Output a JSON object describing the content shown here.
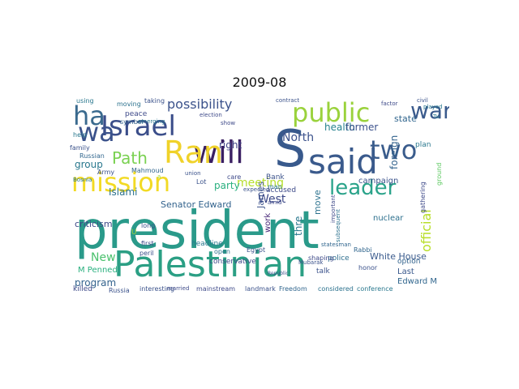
{
  "title": "2009-08",
  "words": [
    {
      "text": "president",
      "color": "#2a9a8a"
    },
    {
      "text": "Palestinian",
      "color": "#2b9f84"
    },
    {
      "text": "said",
      "color": "#3a5a8c"
    },
    {
      "text": "S",
      "color": "#38598c"
    },
    {
      "text": "will",
      "color": "#3a1f62"
    },
    {
      "text": "Ran",
      "color": "#f0d22a"
    },
    {
      "text": "mission",
      "color": "#f2da24"
    },
    {
      "text": "Israel",
      "color": "#3b4e8a"
    },
    {
      "text": "public",
      "color": "#9ad23c"
    },
    {
      "text": "two",
      "color": "#3a5c8c"
    },
    {
      "text": "war",
      "color": "#3a5a8c"
    },
    {
      "text": "ha",
      "color": "#3a6a8e"
    },
    {
      "text": "wa",
      "color": "#3b528b"
    },
    {
      "text": "leader",
      "color": "#2aa38a"
    },
    {
      "text": "Path",
      "color": "#7ad151"
    },
    {
      "text": "possibility",
      "color": "#3b528b"
    },
    {
      "text": "official",
      "color": "#b8de29"
    },
    {
      "text": "meeting",
      "color": "#b5de2b"
    },
    {
      "text": "West",
      "color": "#3e4a89"
    },
    {
      "text": "North",
      "color": "#3b518b"
    },
    {
      "text": "right",
      "color": "#404387"
    },
    {
      "text": "health",
      "color": "#26828e"
    },
    {
      "text": "former",
      "color": "#3b518b"
    },
    {
      "text": "state",
      "color": "#31668e"
    },
    {
      "text": "foreign",
      "color": "#33638d"
    },
    {
      "text": "group",
      "color": "#2a788e"
    },
    {
      "text": "party",
      "color": "#2ab07f"
    },
    {
      "text": "New",
      "color": "#4ac16d"
    },
    {
      "text": "program",
      "color": "#33638d"
    },
    {
      "text": "Senator Edward",
      "color": "#33638d"
    },
    {
      "text": "Islami",
      "color": "#2c728e"
    },
    {
      "text": "criticism",
      "color": "#3e4a89"
    },
    {
      "text": "James",
      "color": "#3b518b"
    },
    {
      "text": "White House",
      "color": "#3a5a8c"
    },
    {
      "text": "Last",
      "color": "#38588c"
    },
    {
      "text": "Edward M",
      "color": "#31668e"
    },
    {
      "text": "campaign",
      "color": "#3b528b"
    },
    {
      "text": "move",
      "color": "#2c728e"
    },
    {
      "text": "nuclear",
      "color": "#2d708e"
    },
    {
      "text": "police",
      "color": "#2e6e8e"
    },
    {
      "text": "M Penned",
      "color": "#2ab07f"
    },
    {
      "text": "killed",
      "color": "#3e4a89"
    },
    {
      "text": "Russia",
      "color": "#3b528b"
    },
    {
      "text": "mainstream",
      "color": "#3e4a89"
    },
    {
      "text": "landmark",
      "color": "#3b528b"
    },
    {
      "text": "Freedom",
      "color": "#31668e"
    },
    {
      "text": "considered",
      "color": "#2c728e"
    },
    {
      "text": "conference",
      "color": "#2a788e"
    },
    {
      "text": "interesting",
      "color": "#3b528b"
    },
    {
      "text": "conservative",
      "color": "#3e4a89"
    },
    {
      "text": "headline",
      "color": "#2a788e"
    },
    {
      "text": "work",
      "color": "#482878"
    },
    {
      "text": "thre",
      "color": "#2a788e"
    },
    {
      "text": "talk",
      "color": "#3b528b"
    },
    {
      "text": "option",
      "color": "#33638d"
    },
    {
      "text": "plan",
      "color": "#2a788e"
    },
    {
      "text": "family",
      "color": "#3b528b"
    },
    {
      "text": "Russian",
      "color": "#31668e"
    },
    {
      "text": "Army",
      "color": "#3b528b"
    },
    {
      "text": "Mahmoud",
      "color": "#31668e"
    },
    {
      "text": "help",
      "color": "#2a788e"
    },
    {
      "text": "peace",
      "color": "#3e4a89"
    },
    {
      "text": "symbol",
      "color": "#33638d"
    },
    {
      "text": "moving",
      "color": "#2c728e"
    },
    {
      "text": "taking",
      "color": "#3b528b"
    },
    {
      "text": "using",
      "color": "#2a788e"
    },
    {
      "text": "accused",
      "color": "#3e4a89"
    },
    {
      "text": "Bank",
      "color": "#3b528b"
    },
    {
      "text": "man",
      "color": "#2a788e"
    },
    {
      "text": "Lot",
      "color": "#3b528b"
    },
    {
      "text": "care",
      "color": "#3e4a89"
    },
    {
      "text": "long",
      "color": "#3b528b"
    },
    {
      "text": "first",
      "color": "#3e4a89"
    },
    {
      "text": "peril",
      "color": "#3b528b"
    },
    {
      "text": "open",
      "color": "#2c728e"
    },
    {
      "text": "Egypt",
      "color": "#3b528b"
    },
    {
      "text": "shaping",
      "color": "#3e4a89"
    },
    {
      "text": "honor",
      "color": "#3b528b"
    },
    {
      "text": "Rabbi",
      "color": "#31668e"
    },
    {
      "text": "gathering",
      "color": "#3e4a89"
    },
    {
      "text": "ground",
      "color": "#5ec962"
    },
    {
      "text": "Bosnia",
      "color": "#2a788e"
    },
    {
      "text": "expected",
      "color": "#3b528b"
    },
    {
      "text": "subsequent",
      "color": "#2c728e"
    },
    {
      "text": "show",
      "color": "#3e4a89"
    },
    {
      "text": "union",
      "color": "#3b528b"
    },
    {
      "text": "election",
      "color": "#3e4a89"
    },
    {
      "text": "emerging",
      "color": "#2a788e"
    },
    {
      "text": "important",
      "color": "#3e4a89"
    },
    {
      "text": "statesman",
      "color": "#31668e"
    },
    {
      "text": "Mubarak",
      "color": "#3b528b"
    },
    {
      "text": "a",
      "color": "#a2da37"
    },
    {
      "text": "U",
      "color": "#9ad23c"
    },
    {
      "text": "amid",
      "color": "#3e4a89"
    },
    {
      "text": "civil",
      "color": "#3b528b"
    },
    {
      "text": "factor",
      "color": "#3e4a89"
    },
    {
      "text": "contract",
      "color": "#3b528b"
    },
    {
      "text": "played",
      "color": "#2a788e"
    },
    {
      "text": "Republic",
      "color": "#3b528b"
    },
    {
      "text": "Tu",
      "color": "#2a788e"
    },
    {
      "text": "married",
      "color": "#3e4a89"
    }
  ]
}
